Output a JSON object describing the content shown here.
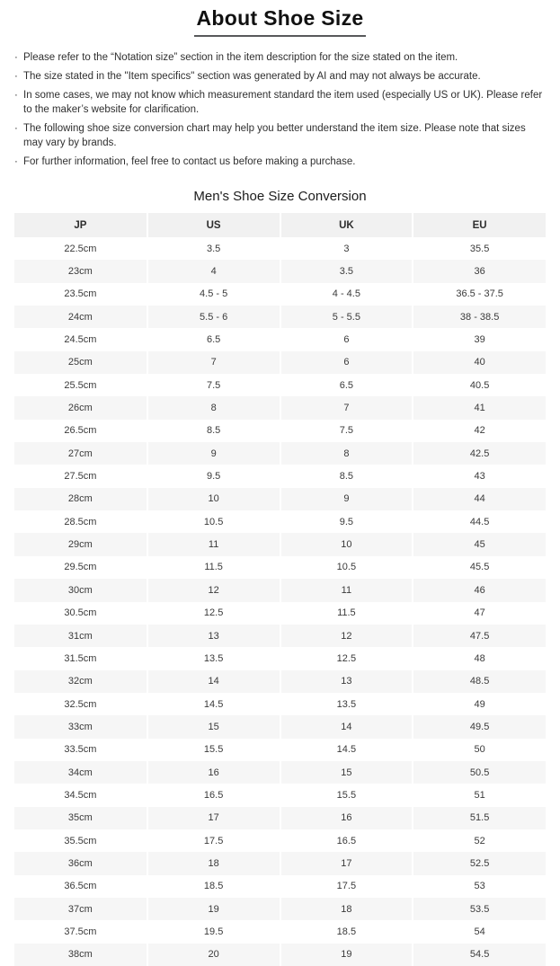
{
  "page": {
    "title": "About Shoe Size",
    "bullet_char": "·",
    "notes": [
      "Please refer to the “Notation size” section in the item description for the size stated on the item.",
      "The size stated in the \"Item specifics\" section was generated by AI and may not always be accurate.",
      "In some cases, we may not know which measurement standard the item used (especially US or UK). Please refer to the maker’s website for clarification.",
      "The following shoe size conversion chart may help you better understand the item size. Please note that sizes may vary by brands.",
      "For further information, feel free to contact us before making a purchase."
    ],
    "table_title": "Men's Shoe Size Conversion"
  },
  "table": {
    "headers": [
      "JP",
      "US",
      "UK",
      "EU"
    ],
    "rows": [
      [
        "22.5cm",
        "3.5",
        "3",
        "35.5"
      ],
      [
        "23cm",
        "4",
        "3.5",
        "36"
      ],
      [
        "23.5cm",
        "4.5 - 5",
        "4 - 4.5",
        "36.5 - 37.5"
      ],
      [
        "24cm",
        "5.5 - 6",
        "5 - 5.5",
        "38 - 38.5"
      ],
      [
        "24.5cm",
        "6.5",
        "6",
        "39"
      ],
      [
        "25cm",
        "7",
        "6",
        "40"
      ],
      [
        "25.5cm",
        "7.5",
        "6.5",
        "40.5"
      ],
      [
        "26cm",
        "8",
        "7",
        "41"
      ],
      [
        "26.5cm",
        "8.5",
        "7.5",
        "42"
      ],
      [
        "27cm",
        "9",
        "8",
        "42.5"
      ],
      [
        "27.5cm",
        "9.5",
        "8.5",
        "43"
      ],
      [
        "28cm",
        "10",
        "9",
        "44"
      ],
      [
        "28.5cm",
        "10.5",
        "9.5",
        "44.5"
      ],
      [
        "29cm",
        "11",
        "10",
        "45"
      ],
      [
        "29.5cm",
        "11.5",
        "10.5",
        "45.5"
      ],
      [
        "30cm",
        "12",
        "11",
        "46"
      ],
      [
        "30.5cm",
        "12.5",
        "11.5",
        "47"
      ],
      [
        "31cm",
        "13",
        "12",
        "47.5"
      ],
      [
        "31.5cm",
        "13.5",
        "12.5",
        "48"
      ],
      [
        "32cm",
        "14",
        "13",
        "48.5"
      ],
      [
        "32.5cm",
        "14.5",
        "13.5",
        "49"
      ],
      [
        "33cm",
        "15",
        "14",
        "49.5"
      ],
      [
        "33.5cm",
        "15.5",
        "14.5",
        "50"
      ],
      [
        "34cm",
        "16",
        "15",
        "50.5"
      ],
      [
        "34.5cm",
        "16.5",
        "15.5",
        "51"
      ],
      [
        "35cm",
        "17",
        "16",
        "51.5"
      ],
      [
        "35.5cm",
        "17.5",
        "16.5",
        "52"
      ],
      [
        "36cm",
        "18",
        "17",
        "52.5"
      ],
      [
        "36.5cm",
        "18.5",
        "17.5",
        "53"
      ],
      [
        "37cm",
        "19",
        "18",
        "53.5"
      ],
      [
        "37.5cm",
        "19.5",
        "18.5",
        "54"
      ],
      [
        "38cm",
        "20",
        "19",
        "54.5"
      ]
    ]
  },
  "colors": {
    "header_bg": "#f1f1f1",
    "stripe_bg": "#f6f6f6",
    "text": "#333333",
    "title_underline": "#58595b"
  }
}
